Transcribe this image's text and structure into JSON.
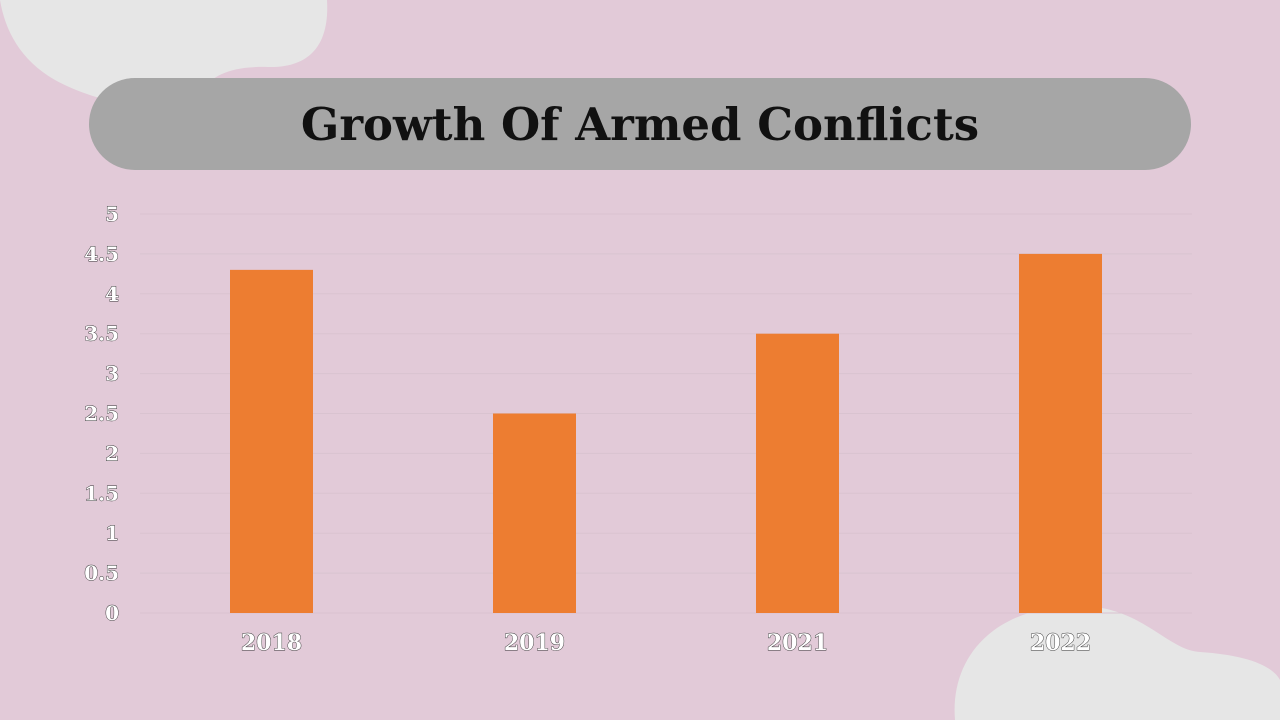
{
  "colors": {
    "background": "#e2cad8",
    "bar": "#ed7d31",
    "title_bar": "#a6a6a6",
    "blob": "#e6e6e6",
    "gridline": "#d9c3d0"
  },
  "chart_data": {
    "type": "bar",
    "title": "Growth Of Armed Conflicts",
    "categories": [
      "2018",
      "2019",
      "2021",
      "2022"
    ],
    "values": [
      4.3,
      2.5,
      3.5,
      4.5
    ],
    "xlabel": "",
    "ylabel": "",
    "ylim": [
      0,
      5
    ],
    "yticks": [
      "0",
      "0.5",
      "1",
      "1.5",
      "2",
      "2.5",
      "3",
      "3.5",
      "4",
      "4.5",
      "5"
    ],
    "grid": true,
    "legend": "none"
  }
}
